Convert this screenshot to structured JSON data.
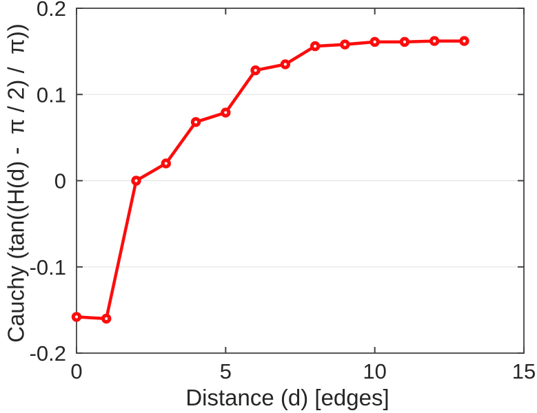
{
  "chart_data": {
    "type": "line",
    "title": "",
    "xlabel": "Distance (d) [edges]",
    "ylabel": "Cauchy (tan((H(d) -  π / 2) /  π))",
    "x": [
      0,
      1,
      2,
      3,
      4,
      5,
      6,
      7,
      8,
      9,
      10,
      11,
      12,
      13
    ],
    "y": [
      -0.158,
      -0.16,
      0.0,
      0.02,
      0.068,
      0.079,
      0.128,
      0.135,
      0.156,
      0.158,
      0.161,
      0.161,
      0.162,
      0.162
    ],
    "xlim": [
      0,
      15
    ],
    "ylim": [
      -0.2,
      0.2
    ],
    "xticks": {
      "values": [
        0,
        5,
        10,
        15
      ],
      "labels": [
        "0",
        "5",
        "10",
        "15"
      ]
    },
    "yticks": {
      "values": [
        -0.2,
        -0.1,
        0,
        0.1,
        0.2
      ],
      "labels": [
        "-0.2",
        "-0.1",
        "0",
        "0.1",
        "0.2"
      ]
    },
    "grid": "horizontal-only",
    "legend": null,
    "line_color": "#fb0d0d",
    "marker": "circle-with-white-center",
    "grid_color": "#e4e4e4",
    "axis_color": "#555555",
    "tick_color": "#404040",
    "text_color": "#262626",
    "background": "#ffffff"
  }
}
